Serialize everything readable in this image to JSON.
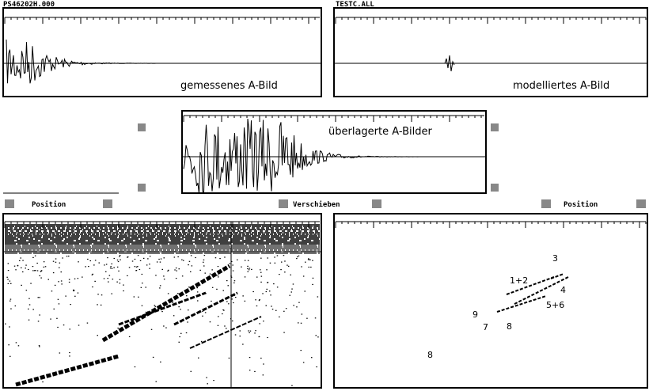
{
  "windows": [
    {
      "title": "PS46202H.000",
      "caption": "gemessenes A-Bild"
    },
    {
      "title": "TESTC.ALL",
      "caption": "modelliertes A-Bild"
    }
  ],
  "overlay": {
    "caption": "überlagerte A-Bilder"
  },
  "toolbar": {
    "left": "Position",
    "center": "Verschieben",
    "right": "Position"
  },
  "reflectors": [
    "3",
    "1+2",
    "4",
    "5+6",
    "9",
    "7",
    "8",
    "8"
  ]
}
